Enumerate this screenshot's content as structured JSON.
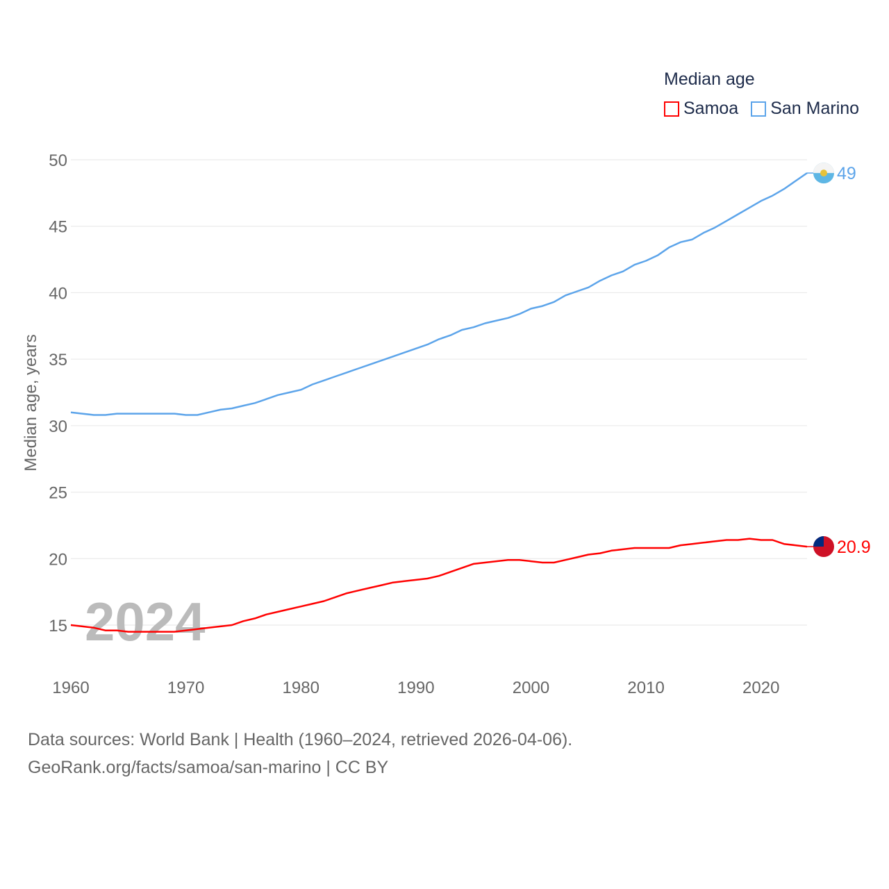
{
  "chart_data": {
    "type": "line",
    "title": "Median age",
    "ylabel": "Median age, years",
    "xlabel": "",
    "xlim": [
      1960,
      2024
    ],
    "ylim": [
      12,
      51
    ],
    "y_ticks": [
      15,
      20,
      25,
      30,
      35,
      40,
      45,
      50
    ],
    "x_ticks": [
      1960,
      1970,
      1980,
      1990,
      2000,
      2010,
      2020
    ],
    "grid": true,
    "legend_placement": "top-right",
    "watermark_year": "2024",
    "x": [
      1960,
      1961,
      1962,
      1963,
      1964,
      1965,
      1966,
      1967,
      1968,
      1969,
      1970,
      1971,
      1972,
      1973,
      1974,
      1975,
      1976,
      1977,
      1978,
      1979,
      1980,
      1981,
      1982,
      1983,
      1984,
      1985,
      1986,
      1987,
      1988,
      1989,
      1990,
      1991,
      1992,
      1993,
      1994,
      1995,
      1996,
      1997,
      1998,
      1999,
      2000,
      2001,
      2002,
      2003,
      2004,
      2005,
      2006,
      2007,
      2008,
      2009,
      2010,
      2011,
      2012,
      2013,
      2014,
      2015,
      2016,
      2017,
      2018,
      2019,
      2020,
      2021,
      2022,
      2023,
      2024
    ],
    "series": [
      {
        "name": "Samoa",
        "color": "#ff0000",
        "end_label": "20.9",
        "values": [
          15.0,
          14.9,
          14.8,
          14.6,
          14.6,
          14.5,
          14.5,
          14.5,
          14.5,
          14.5,
          14.6,
          14.7,
          14.8,
          14.9,
          15.0,
          15.3,
          15.5,
          15.8,
          16.0,
          16.2,
          16.4,
          16.6,
          16.8,
          17.1,
          17.4,
          17.6,
          17.8,
          18.0,
          18.2,
          18.3,
          18.4,
          18.5,
          18.7,
          19.0,
          19.3,
          19.6,
          19.7,
          19.8,
          19.9,
          19.9,
          19.8,
          19.7,
          19.7,
          19.9,
          20.1,
          20.3,
          20.4,
          20.6,
          20.7,
          20.8,
          20.8,
          20.8,
          20.8,
          21.0,
          21.1,
          21.2,
          21.3,
          21.4,
          21.4,
          21.5,
          21.4,
          21.4,
          21.1,
          21.0,
          20.9
        ]
      },
      {
        "name": "San Marino",
        "color": "#5ca4ea",
        "end_label": "49",
        "values": [
          31.0,
          30.9,
          30.8,
          30.8,
          30.9,
          30.9,
          30.9,
          30.9,
          30.9,
          30.9,
          30.8,
          30.8,
          31.0,
          31.2,
          31.3,
          31.5,
          31.7,
          32.0,
          32.3,
          32.5,
          32.7,
          33.1,
          33.4,
          33.7,
          34.0,
          34.3,
          34.6,
          34.9,
          35.2,
          35.5,
          35.8,
          36.1,
          36.5,
          36.8,
          37.2,
          37.4,
          37.7,
          37.9,
          38.1,
          38.4,
          38.8,
          39.0,
          39.3,
          39.8,
          40.1,
          40.4,
          40.9,
          41.3,
          41.6,
          42.1,
          42.4,
          42.8,
          43.4,
          43.8,
          44.0,
          44.5,
          44.9,
          45.4,
          45.9,
          46.4,
          46.9,
          47.3,
          47.8,
          48.4,
          49.0
        ]
      }
    ]
  },
  "footer": {
    "line1": "Data sources: World Bank | Health (1960–2024, retrieved 2026-04-06).",
    "line2": "GeoRank.org/facts/samoa/san-marino | CC BY"
  }
}
